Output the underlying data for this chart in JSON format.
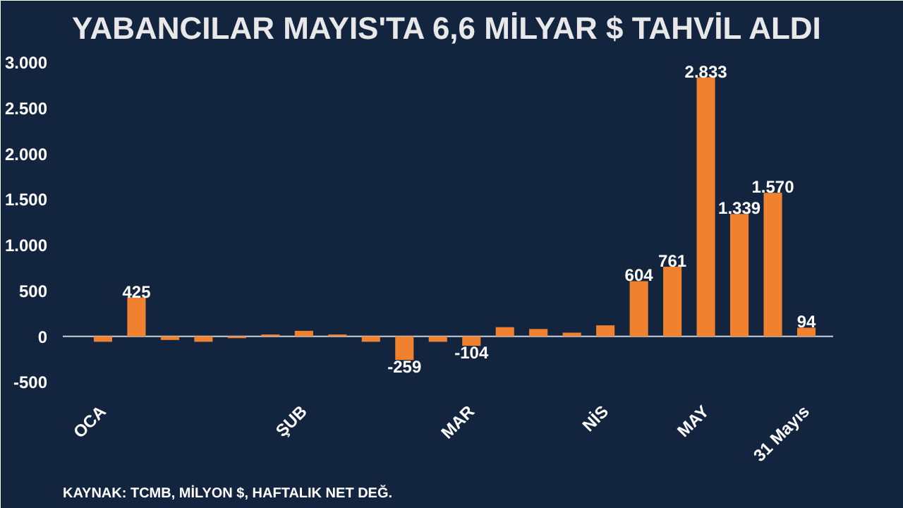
{
  "chart_data": {
    "type": "bar",
    "title": "YABANCILAR MAYIS'TA 6,6 MİLYAR $ TAHVİL ALDI",
    "categories": [
      "OCA",
      null,
      null,
      null,
      null,
      null,
      "ŞUB",
      null,
      null,
      null,
      null,
      "MAR",
      null,
      null,
      null,
      "NİS",
      null,
      null,
      "MAY",
      null,
      null,
      "31 Mayıs"
    ],
    "values": [
      -60,
      425,
      -40,
      -60,
      -20,
      20,
      60,
      20,
      -60,
      -259,
      -60,
      -104,
      100,
      80,
      40,
      120,
      604,
      761,
      2833,
      1339,
      1570,
      94
    ],
    "ref_lines": [
      {
        "axis": "y",
        "value": 0,
        "color": "#c8d0dc"
      }
    ],
    "value_labels": [
      null,
      "425",
      null,
      null,
      null,
      null,
      null,
      null,
      null,
      "-259",
      null,
      "-104",
      null,
      null,
      null,
      null,
      "604",
      "761",
      "2.833",
      "1.339",
      "1.570",
      "94"
    ],
    "color": "#f0812f",
    "ylim": [
      -620,
      3100
    ],
    "yticks": [
      {
        "value": -500,
        "label": "-500"
      },
      0,
      500,
      {
        "value": 1000,
        "label": "1.000"
      },
      {
        "value": 1500,
        "label": "1.500"
      },
      {
        "value": 2000,
        "label": "2.000"
      },
      {
        "value": 2500,
        "label": "2.500"
      },
      {
        "value": 3000,
        "label": "3.000"
      }
    ],
    "grid": false,
    "annotations": [
      "KAYNAK: TCMB, MİLYON $, HAFTALIK NET DEĞ."
    ]
  }
}
